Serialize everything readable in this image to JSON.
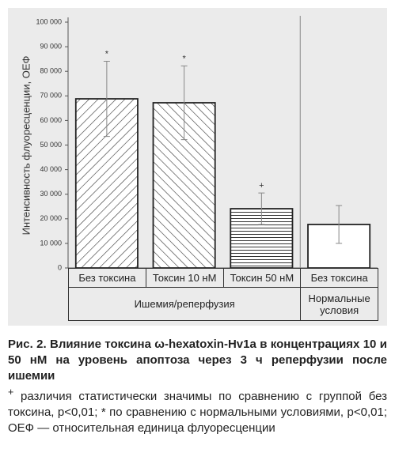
{
  "chart_data": {
    "type": "bar",
    "y_label": "Интенсивность флуоресценции, ОЕФ",
    "categories": [
      "Без токсина",
      "Токсин 10 нМ",
      "Токсин 50 нМ",
      "Без токсина"
    ],
    "values": [
      68800,
      67200,
      24100,
      17700
    ],
    "errors": [
      15300,
      15000,
      6400,
      7700
    ],
    "annotations": [
      "*",
      "*",
      "+",
      null
    ],
    "patterns": [
      "diagonal-down",
      "diagonal-up",
      "horizontal",
      "none"
    ],
    "groups": [
      {
        "label": "Ишемия/реперфузия",
        "span": 3
      },
      {
        "label": "Нормальные условия",
        "span": 1
      }
    ],
    "ylim": [
      0,
      100000
    ],
    "yticks": [
      0,
      {
        "value": 10000,
        "label": "10 000"
      },
      {
        "value": 20000,
        "label": "20 000"
      },
      {
        "value": 30000,
        "label": "30 000"
      },
      {
        "value": 40000,
        "label": "40 000"
      },
      {
        "value": 50000,
        "label": "50 000"
      },
      {
        "value": 60000,
        "label": "60 000"
      },
      {
        "value": 70000,
        "label": "70 000"
      },
      {
        "value": 80000,
        "label": "80 000"
      },
      {
        "value": 90000,
        "label": "90 000"
      },
      {
        "value": 100000,
        "label": "100 000"
      }
    ]
  },
  "caption": {
    "title": "Рис. 2. Влияние токсина ω-hexatoxin-Hv1a в концентрациях 10 и 50 нМ на уровень апоптоза через 3 ч реперфузии после ишемии",
    "note_mark": "+",
    "note": "различия статистически значимы по сравнению с группой без токсина, p<0,01; * по сравнению с нормальными условиями, p<0,01; ОЕФ — относительная единица флуоресценции"
  }
}
